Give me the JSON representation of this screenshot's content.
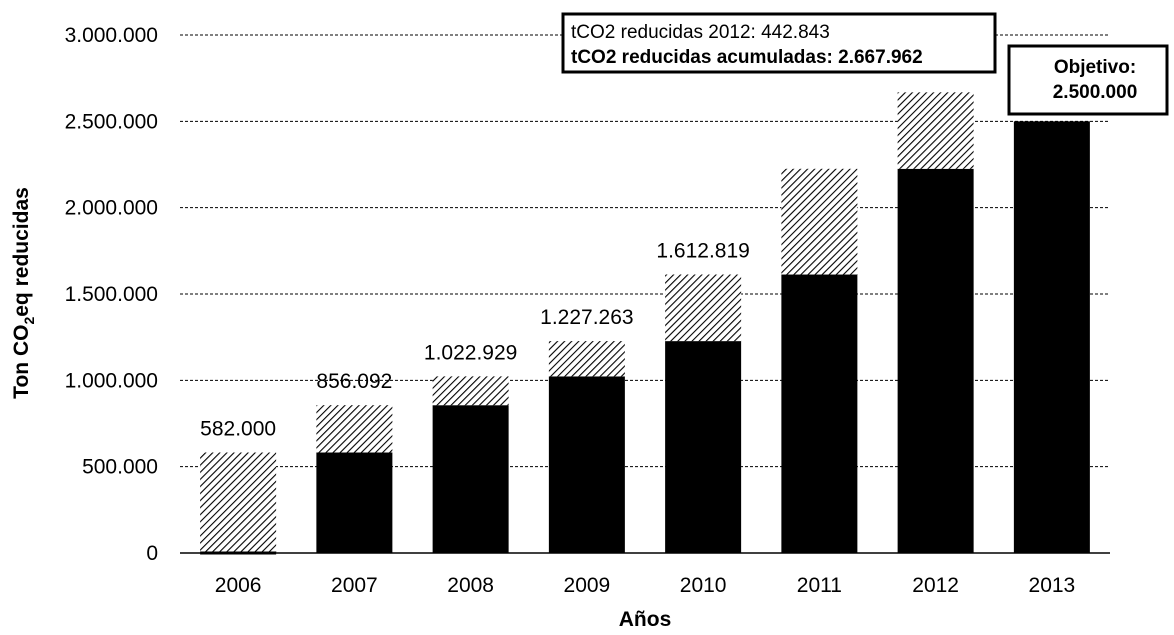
{
  "chart_data": {
    "type": "bar",
    "stacked": true,
    "xlabel": "Años",
    "ylabel_main": "Ton CO",
    "ylabel_sub": "2",
    "ylabel_rest": "eq reducidas",
    "ylim": [
      0,
      3000000
    ],
    "yticks": [
      0,
      500000,
      1000000,
      1500000,
      2000000,
      2500000,
      3000000
    ],
    "ytick_labels": [
      "0",
      "500.000",
      "1.000.000",
      "1.500.000",
      "2.000.000",
      "2.500.000",
      "3.000.000"
    ],
    "grid": "dashed horizontal",
    "categories": [
      "2006",
      "2007",
      "2008",
      "2009",
      "2010",
      "2011",
      "2012",
      "2013"
    ],
    "series": [
      {
        "color": "#000000",
        "pattern": "solid",
        "values": [
          0,
          582000,
          856092,
          1022929,
          1227263,
          1612819,
          2225119,
          2500000
        ]
      },
      {
        "color": "#000000",
        "pattern": "hatched",
        "values": [
          582000,
          274092,
          166837,
          204334,
          385556,
          612300,
          442843,
          0
        ]
      }
    ],
    "data_labels": [
      "582.000",
      "856.092",
      "1.022.929",
      "1.227.263",
      "1.612.819",
      "",
      "",
      ""
    ],
    "annotation_box": {
      "line1": "tCO2 reducidas 2012: 442.843",
      "line2": "tCO2 reducidas acumuladas: 2.667.962"
    },
    "goal_box": {
      "line1": "Objetivo:",
      "line2": "2.500.000"
    }
  }
}
